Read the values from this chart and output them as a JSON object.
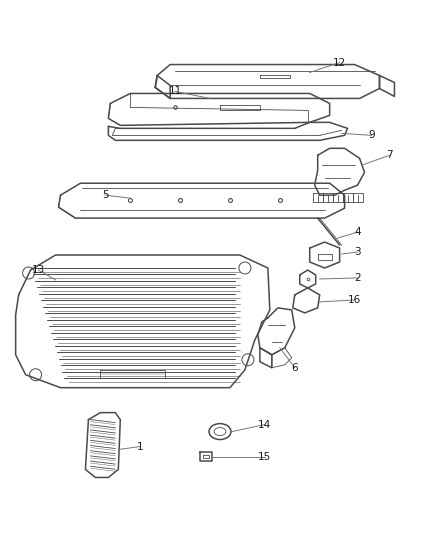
{
  "background_color": "#ffffff",
  "line_color": "#4a4a4a",
  "leader_color": "#777777",
  "lw_main": 1.1,
  "lw_inner": 0.6,
  "lw_leader": 0.7,
  "label_fs": 7.5,
  "fig_w": 4.38,
  "fig_h": 5.33,
  "dpi": 100
}
